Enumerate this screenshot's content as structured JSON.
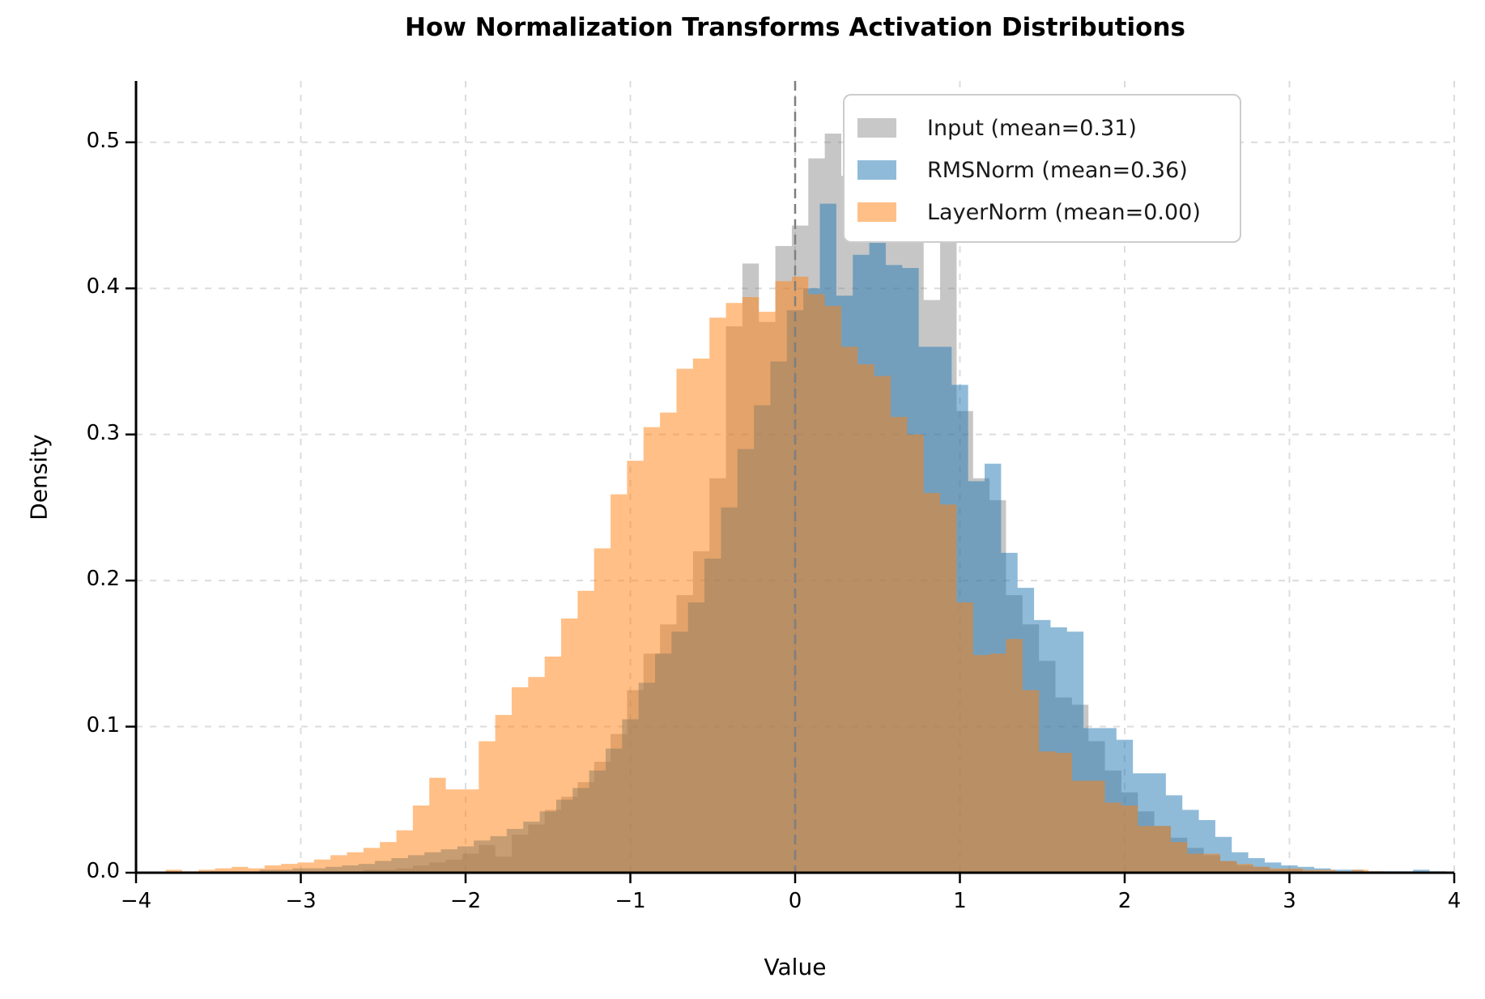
{
  "title": "How Normalization Transforms Activation Distributions",
  "axes": {
    "xlabel": "Value",
    "ylabel": "Density",
    "xlim": [
      -4,
      4
    ],
    "ylim": [
      0,
      0.542
    ],
    "x_ticks": [
      -4,
      -3,
      -2,
      -1,
      0,
      1,
      2,
      3,
      4
    ],
    "x_tick_labels": [
      "−4",
      "−3",
      "−2",
      "−1",
      "0",
      "1",
      "2",
      "3",
      "4"
    ],
    "y_ticks": [
      0.0,
      0.1,
      0.2,
      0.3,
      0.4,
      0.5
    ],
    "y_tick_labels": [
      "0.0",
      "0.1",
      "0.2",
      "0.3",
      "0.4",
      "0.5"
    ],
    "grid": true,
    "grid_color": "#dcdcdc",
    "spine_color": "#000000"
  },
  "legend": {
    "position": "upper right",
    "entries": [
      {
        "label": "Input (mean=0.31)",
        "swatch_color": "#c8c8c8"
      },
      {
        "label": "RMSNorm (mean=0.36)",
        "swatch_color": "#8fbbd9"
      },
      {
        "label": "LayerNorm (mean=0.00)",
        "swatch_color": "#ffbf87"
      }
    ]
  },
  "mean_line": {
    "x": 0,
    "color": "#7f7f7f",
    "style": "dashed"
  },
  "chart_data": {
    "type": "bar",
    "subtype": "overlapping-histograms",
    "bin_width": 0.1,
    "xlabel": "Value",
    "ylabel": "Density",
    "xlim": [
      -4,
      4
    ],
    "ylim": [
      0,
      0.542
    ],
    "series": [
      {
        "name": "Input (mean=0.31)",
        "mean": 0.31,
        "fill": "rgba(128,128,128,0.45)",
        "x0": -2.72,
        "values": [
          0.001,
          0.002,
          0.002,
          0.003,
          0.005,
          0.007,
          0.009,
          0.013,
          0.019,
          0.011,
          0.026,
          0.033,
          0.043,
          0.052,
          0.062,
          0.076,
          0.095,
          0.125,
          0.15,
          0.17,
          0.19,
          0.22,
          0.27,
          0.374,
          0.417,
          0.377,
          0.429,
          0.443,
          0.489,
          0.506,
          0.477,
          0.504,
          0.482,
          0.435,
          0.441,
          0.392,
          0.437,
          0.316,
          0.27,
          0.255,
          0.19,
          0.17,
          0.145,
          0.12,
          0.115,
          0.09,
          0.07,
          0.055,
          0.042,
          0.032,
          0.024,
          0.017,
          0.012,
          0.008,
          0.005,
          0.004,
          0.002,
          0.002,
          0.001
        ]
      },
      {
        "name": "RMSNorm (mean=0.36)",
        "mean": 0.36,
        "fill": "rgba(31,119,180,0.5)",
        "x0": -3.55,
        "values": [
          0.001,
          0.001,
          0.001,
          0.002,
          0.002,
          0.003,
          0.003,
          0.004,
          0.005,
          0.006,
          0.008,
          0.01,
          0.012,
          0.014,
          0.016,
          0.018,
          0.022,
          0.025,
          0.03,
          0.035,
          0.042,
          0.05,
          0.058,
          0.07,
          0.085,
          0.105,
          0.13,
          0.15,
          0.165,
          0.185,
          0.215,
          0.25,
          0.29,
          0.32,
          0.35,
          0.385,
          0.4,
          0.458,
          0.395,
          0.423,
          0.445,
          0.416,
          0.414,
          0.36,
          0.36,
          0.334,
          0.268,
          0.28,
          0.219,
          0.195,
          0.173,
          0.168,
          0.165,
          0.099,
          0.099,
          0.091,
          0.068,
          0.068,
          0.053,
          0.043,
          0.036,
          0.0245,
          0.014,
          0.01,
          0.007,
          0.005,
          0.004,
          0.003,
          0.002,
          0.002,
          0.001,
          0.001,
          0.001,
          0.002,
          0.001
        ]
      },
      {
        "name": "LayerNorm (mean=0.00)",
        "mean": 0.0,
        "fill": "rgba(255,127,14,0.5)",
        "x0": -3.82,
        "values": [
          0.002,
          0.001,
          0.002,
          0.003,
          0.004,
          0.003,
          0.005,
          0.006,
          0.007,
          0.009,
          0.012,
          0.014,
          0.017,
          0.021,
          0.029,
          0.046,
          0.065,
          0.057,
          0.057,
          0.09,
          0.108,
          0.127,
          0.134,
          0.148,
          0.174,
          0.193,
          0.222,
          0.259,
          0.282,
          0.305,
          0.315,
          0.345,
          0.352,
          0.38,
          0.39,
          0.394,
          0.384,
          0.405,
          0.408,
          0.396,
          0.388,
          0.36,
          0.348,
          0.34,
          0.312,
          0.3,
          0.26,
          0.252,
          0.185,
          0.149,
          0.15,
          0.16,
          0.125,
          0.083,
          0.082,
          0.063,
          0.063,
          0.048,
          0.046,
          0.032,
          0.032,
          0.021,
          0.013,
          0.013,
          0.008,
          0.006,
          0.004,
          0.003,
          0.003,
          0.002,
          0.002,
          0.001,
          0.002,
          0.001
        ]
      }
    ]
  }
}
